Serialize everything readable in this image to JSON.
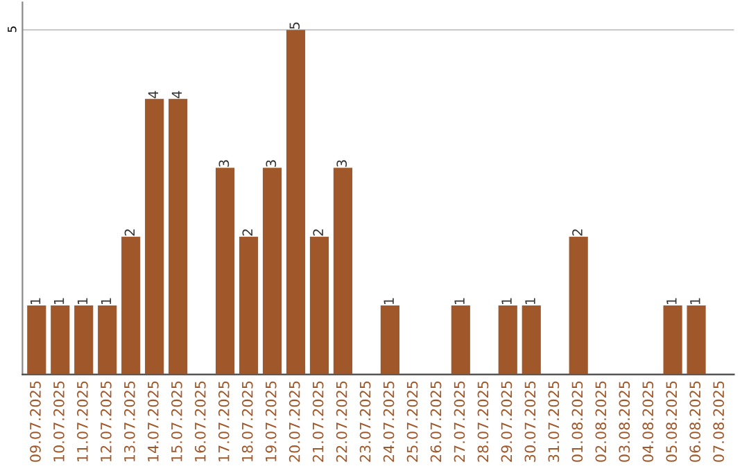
{
  "chart_data": {
    "type": "bar",
    "categories": [
      "09.07.2025",
      "10.07.2025",
      "11.07.2025",
      "12.07.2025",
      "13.07.2025",
      "14.07.2025",
      "15.07.2025",
      "16.07.2025",
      "17.07.2025",
      "18.07.2025",
      "19.07.2025",
      "20.07.2025",
      "21.07.2025",
      "22.07.2025",
      "23.07.2025",
      "24.07.2025",
      "25.07.2025",
      "26.07.2025",
      "27.07.2025",
      "28.07.2025",
      "29.07.2025",
      "30.07.2025",
      "31.07.2025",
      "01.08.2025",
      "02.08.2025",
      "03.08.2025",
      "04.08.2025",
      "05.08.2025",
      "06.08.2025",
      "07.08.2025"
    ],
    "values": [
      1,
      1,
      1,
      1,
      2,
      4,
      4,
      0,
      3,
      2,
      3,
      5,
      2,
      3,
      0,
      1,
      0,
      0,
      1,
      0,
      1,
      1,
      0,
      2,
      0,
      0,
      0,
      1,
      1,
      0
    ],
    "value_labels": [
      "1",
      "1",
      "1",
      "1",
      "2",
      "4",
      "4",
      null,
      "3",
      "2",
      "3",
      "5",
      "2",
      "3",
      null,
      "1",
      null,
      null,
      "1",
      null,
      "1",
      "1",
      null,
      "2",
      null,
      null,
      null,
      "1",
      "1",
      null
    ],
    "color": "#a0582a",
    "ylim": [
      0,
      5.4
    ],
    "yticks": [
      5
    ],
    "grid": "y"
  }
}
